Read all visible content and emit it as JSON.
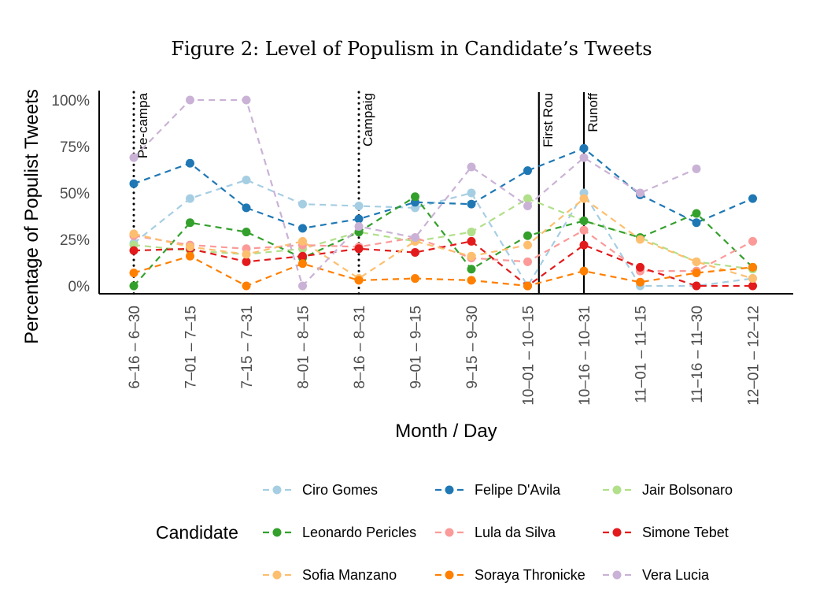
{
  "chart_data": {
    "type": "line",
    "title": "Figure 2: Level of Populism in Candidate’s Tweets",
    "xlabel": "Month / Day",
    "ylabel": "Percentage of Populist Tweets",
    "ylim": [
      0,
      1
    ],
    "y_ticks": [
      "0%",
      "25%",
      "50%",
      "75%",
      "100%"
    ],
    "categories": [
      "6-16 – 6-30",
      "7-01 – 7-15",
      "7-15 – 7-31",
      "8-01 – 8-15",
      "8-16 – 8-31",
      "9-01 – 9-15",
      "9-15 – 9-30",
      "10-01 – 10-15",
      "10-16 – 10-31",
      "11-01 – 11-15",
      "11-16 – 11-30",
      "12-01 – 12-12"
    ],
    "phase_markers": [
      {
        "label": "Pre-campa",
        "position": 0,
        "style": "dotted"
      },
      {
        "label": "Campaig",
        "position": 4,
        "style": "dotted"
      },
      {
        "label": "First Rou",
        "position": 7.2,
        "style": "solid"
      },
      {
        "label": "Runoff",
        "position": 8,
        "style": "solid"
      }
    ],
    "legend_title": "Candidate",
    "legend_position": "bottom",
    "series": [
      {
        "name": "Ciro Gomes",
        "color": "#a6cee3",
        "values": [
          0.23,
          0.47,
          0.57,
          0.44,
          0.43,
          0.42,
          0.5,
          0.0,
          0.5,
          0.0,
          0.0,
          0.04
        ]
      },
      {
        "name": "Felipe D'Avila",
        "color": "#1f78b4",
        "values": [
          0.55,
          0.66,
          0.42,
          0.31,
          0.36,
          0.45,
          0.44,
          0.62,
          0.74,
          0.49,
          0.34,
          0.47
        ]
      },
      {
        "name": "Jair Bolsonaro",
        "color": "#b2df8a",
        "values": [
          0.22,
          0.19,
          0.17,
          0.2,
          0.29,
          0.24,
          0.29,
          0.47,
          0.35,
          0.26,
          0.13,
          0.09
        ]
      },
      {
        "name": "Leonardo Pericles",
        "color": "#33a02c",
        "values": [
          0.0,
          0.34,
          0.29,
          0.15,
          0.29,
          0.48,
          0.09,
          0.27,
          0.35,
          0.26,
          0.39,
          0.1
        ]
      },
      {
        "name": "Lula da Silva",
        "color": "#fb9a99",
        "values": [
          0.27,
          0.22,
          0.2,
          0.22,
          0.21,
          0.26,
          0.15,
          0.13,
          0.3,
          0.08,
          0.08,
          0.24
        ]
      },
      {
        "name": "Simone Tebet",
        "color": "#e31a1c",
        "values": [
          0.19,
          0.2,
          0.13,
          0.16,
          0.2,
          0.18,
          0.24,
          0.0,
          0.22,
          0.1,
          0.0,
          0.0
        ]
      },
      {
        "name": "Sofia Manzano",
        "color": "#fdbf6f",
        "values": [
          0.28,
          0.21,
          0.17,
          0.24,
          0.04,
          0.24,
          0.16,
          0.22,
          0.47,
          0.25,
          0.13,
          0.04
        ]
      },
      {
        "name": "Soraya Thronicke",
        "color": "#ff7f00",
        "values": [
          0.07,
          0.16,
          0.0,
          0.12,
          0.03,
          0.04,
          0.03,
          0.0,
          0.08,
          0.02,
          0.07,
          0.1
        ]
      },
      {
        "name": "Vera Lucia",
        "color": "#cab2d6",
        "values": [
          0.69,
          1.0,
          1.0,
          0.0,
          0.32,
          0.26,
          0.64,
          0.43,
          0.69,
          0.5,
          0.63,
          null
        ]
      }
    ]
  }
}
